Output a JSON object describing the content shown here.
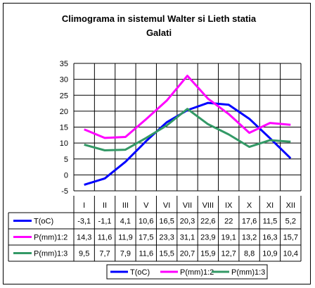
{
  "chart_data": {
    "type": "line",
    "title_line1": "Climograma in sistemul Walter si Lieth statia",
    "title_line2": "Galati",
    "ylim": [
      -5,
      35
    ],
    "yticks": [
      -5,
      0,
      5,
      10,
      15,
      20,
      25,
      30,
      35
    ],
    "categories": [
      "I",
      "II",
      "III",
      "V",
      "VI",
      "VII",
      "VIII",
      "IX",
      "X",
      "XI",
      "XII"
    ],
    "grid": true,
    "legend_position": "bottom",
    "series": [
      {
        "name": "T(oC)",
        "color": "#0000ff",
        "values": [
          -3.1,
          -1.1,
          4.1,
          10.6,
          16.5,
          20.3,
          22.6,
          22,
          17.6,
          11.5,
          5.2
        ],
        "labels": [
          "-3,1",
          "-1,1",
          "4,1",
          "10,6",
          "16,5",
          "20,3",
          "22,6",
          "22",
          "17,6",
          "11,5",
          "5,2"
        ]
      },
      {
        "name": "P(mm)1:2",
        "color": "#ff00ff",
        "values": [
          14.3,
          11.6,
          11.9,
          17.5,
          23.3,
          31.1,
          23.9,
          19.1,
          13.2,
          16.3,
          15.7
        ],
        "labels": [
          "14,3",
          "11,6",
          "11,9",
          "17,5",
          "23,3",
          "31,1",
          "23,9",
          "19,1",
          "13,2",
          "16,3",
          "15,7"
        ]
      },
      {
        "name": "P(mm)1:3",
        "color": "#339966",
        "values": [
          9.5,
          7.7,
          7.9,
          11.6,
          15.5,
          20.7,
          15.9,
          12.7,
          8.8,
          10.9,
          10.4
        ],
        "labels": [
          "9,5",
          "7,7",
          "7,9",
          "11,6",
          "15,5",
          "20,7",
          "15,9",
          "12,7",
          "8,8",
          "10,9",
          "10,4"
        ]
      }
    ]
  }
}
